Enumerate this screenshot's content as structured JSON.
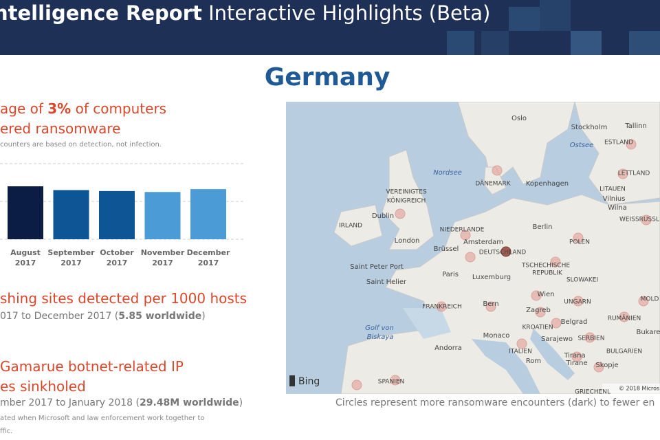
{
  "header": {
    "title_bold": "ntelligence Report",
    "title_rest": "Interactive Highlights (Beta)"
  },
  "country": "Germany",
  "stat1": {
    "pre": "age of ",
    "bold": "3%",
    "post": " of computers",
    "line2": "ered ransomware",
    "note": "counters are based on detection, not infection."
  },
  "chart_data": {
    "type": "bar",
    "categories": [
      "August 2017",
      "September 2017",
      "October 2017",
      "November 2017",
      "December 2017"
    ],
    "values": [
      2.8,
      2.6,
      2.55,
      2.5,
      2.65
    ],
    "colors": [
      "#0b1d45",
      "#0e5596",
      "#0e5596",
      "#4a9bd6",
      "#4a9bd6"
    ],
    "ylim": [
      0,
      4
    ],
    "yticks": [
      0,
      2,
      4
    ],
    "grid": true
  },
  "stat2": {
    "title": "shing sites detected per 1000 hosts",
    "sub_pre": "017 to December 2017 (",
    "sub_bold": "5.85 worldwide",
    "sub_post": ")"
  },
  "stat3": {
    "title_line1": "Gamarue botnet-related IP",
    "title_line2": "es sinkholed",
    "sub_pre": "mber 2017 to January 2018 (",
    "sub_bold": "29.48M worldwide",
    "sub_post": ")",
    "note_line1": "ated when Microsoft and law enforcement work together to",
    "note_line2": "ffic."
  },
  "map": {
    "labels": [
      "Oslo",
      "Stockholm",
      "Tallinn",
      "Ostsee",
      "ESTLAND",
      "Nordsee",
      "DÄNEMARK",
      "Kopenhagen",
      "LETTLAND",
      "VEREINIGTES",
      "KÖNIGREICH",
      "LITAUEN",
      "Vilnius",
      "Wilna",
      "IRLAND",
      "Dublin",
      "WEISSRUSSL",
      "NIEDERLANDE",
      "Berlin",
      "London",
      "Amsterdam",
      "POLEN",
      "Brüssel",
      "DEUTSCHLAND",
      "Saint Peter Port",
      "TSCHECHISCHE",
      "REPUBLIK",
      "Paris",
      "Luxemburg",
      "Saint Helier",
      "SLOWAKEI",
      "Wien",
      "MOLD",
      "FRANKREICH",
      "Bern",
      "UNGARN",
      "Zagreb",
      "Belgrad",
      "RUMÄNIEN",
      "KROATIEN",
      "Golf von",
      "Biskaya",
      "Monaco",
      "Sarajewo",
      "SERBIEN",
      "Bukare",
      "Andorra",
      "ITALIEN",
      "Tirana",
      "BULGARIEN",
      "Rom",
      "Tirane",
      "Skopje",
      "SPANIEN",
      "GRIECHENL"
    ],
    "bing": "Bing",
    "copyright": "© 2018 Micros",
    "caption": "Circles represent more ransomware encounters (dark) to fewer en"
  }
}
